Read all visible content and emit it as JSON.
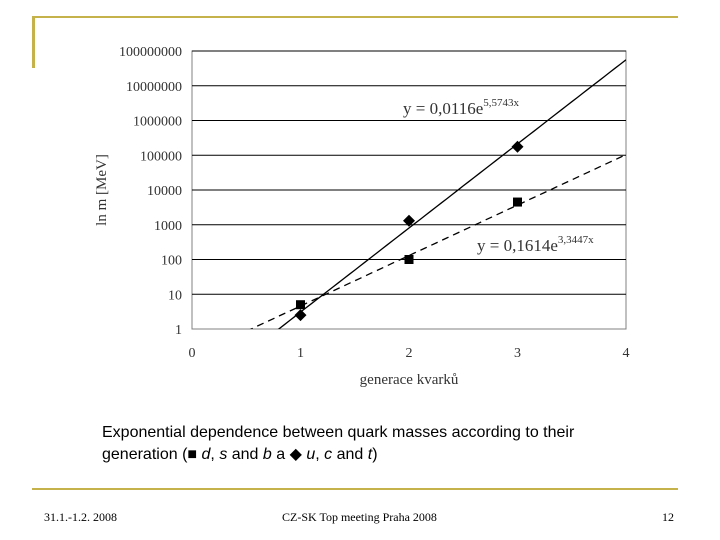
{
  "chart_data": {
    "type": "scatter",
    "yscale": "log",
    "xlabel": "generace kvarků",
    "ylabel": "ln m [MeV]",
    "xlim": [
      0,
      4
    ],
    "ylim": [
      1,
      100000000
    ],
    "x_ticks": [
      "0",
      "1",
      "2",
      "3",
      "4"
    ],
    "y_ticks": [
      "1",
      "10",
      "100",
      "1000",
      "10000",
      "100000",
      "1000000",
      "10000000",
      "100000000"
    ],
    "series": [
      {
        "name": "u, c, t",
        "marker": "diamond",
        "x": [
          1,
          2,
          3
        ],
        "y": [
          2.5,
          1300,
          175000
        ],
        "fit": {
          "type": "exponential",
          "a": 0.0116,
          "b": 5.5743,
          "style": "solid",
          "label_prefix": "y = 0,0116e",
          "label_exp": "5,5743x"
        }
      },
      {
        "name": "d, s, b",
        "marker": "square",
        "x": [
          1,
          2,
          3
        ],
        "y": [
          5,
          100,
          4500
        ],
        "fit": {
          "type": "exponential",
          "a": 0.1614,
          "b": 3.3447,
          "style": "dashed",
          "label_prefix": "y = 0,1614e",
          "label_exp": "3,3447x"
        }
      }
    ]
  },
  "caption": {
    "line1": "Exponential dependence between quark masses according to their",
    "pre": "generation (",
    "square_glyph": "■",
    "d": "d",
    "comma1": ", ",
    "s": "s",
    "and1": " and ",
    "b": "b",
    "a_word": " a ",
    "diamond_glyph": "◆",
    "space": " ",
    "u": "u",
    "comma2": ", ",
    "c": "c",
    "and2": " and ",
    "t": "t",
    "post": ")"
  },
  "footer": {
    "date": "31.1.-1.2. 2008",
    "meeting": "CZ-SK Top meeting Praha 2008",
    "page": "12"
  },
  "colors": {
    "accent": "#c6b24a",
    "plot_border": "#808080",
    "gridline": "#000000"
  }
}
